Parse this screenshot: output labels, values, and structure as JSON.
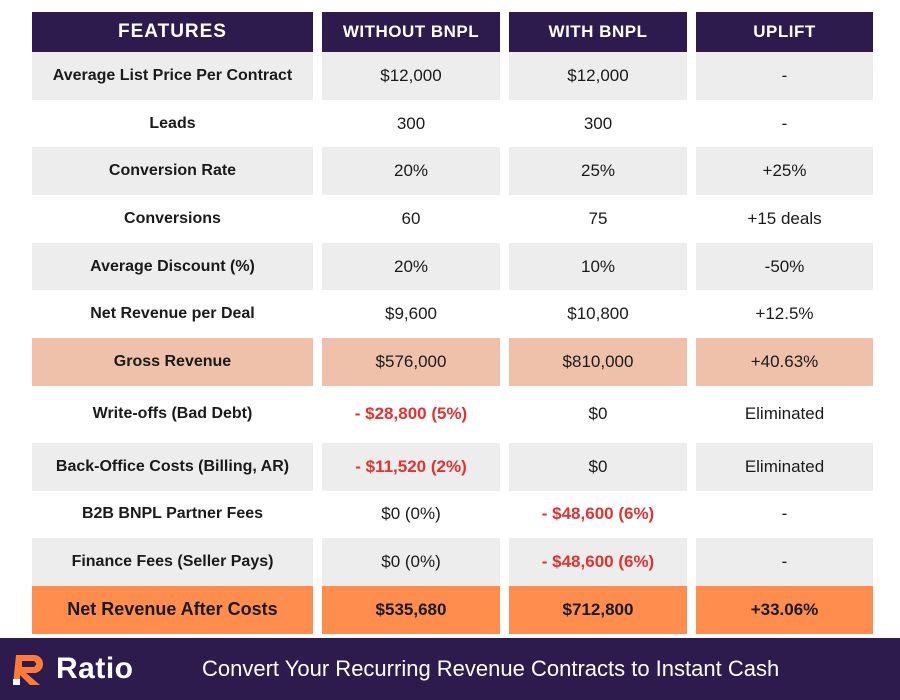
{
  "header": {
    "col0": "FEATURES",
    "col1": "WITHOUT BNPL",
    "col2": "WITH BNPL",
    "col3": "UPLIFT"
  },
  "rows": [
    {
      "feature": "Average List Price Per Contract",
      "without": "$12,000",
      "with": "$12,000",
      "uplift": "-"
    },
    {
      "feature": "Leads",
      "without": "300",
      "with": "300",
      "uplift": "-"
    },
    {
      "feature": "Conversion Rate",
      "without": "20%",
      "with": "25%",
      "uplift": "+25%"
    },
    {
      "feature": "Conversions",
      "without": "60",
      "with": "75",
      "uplift": "+15 deals"
    },
    {
      "feature": "Average Discount (%)",
      "without": "20%",
      "with": "10%",
      "uplift": "-50%"
    },
    {
      "feature": "Net Revenue per Deal",
      "without": "$9,600",
      "with": "$10,800",
      "uplift": "+12.5%"
    },
    {
      "feature": "Gross Revenue",
      "without": "$576,000",
      "with": "$810,000",
      "uplift": "+40.63%"
    },
    {
      "feature": "Write-offs (Bad Debt)",
      "without": "- $28,800 (5%)",
      "with": "$0",
      "uplift": "Eliminated"
    },
    {
      "feature": "Back-Office Costs (Billing, AR)",
      "without": "- $11,520 (2%)",
      "with": "$0",
      "uplift": "Eliminated"
    },
    {
      "feature": "B2B BNPL Partner Fees",
      "without": "$0 (0%)",
      "with": "- $48,600 (6%)",
      "uplift": "-"
    },
    {
      "feature": "Finance Fees (Seller Pays)",
      "without": "$0 (0%)",
      "with": "- $48,600 (6%)",
      "uplift": "-"
    },
    {
      "feature": "Net Revenue After Costs",
      "without": "$535,680",
      "with": "$712,800",
      "uplift": "+33.06%"
    }
  ],
  "footer": {
    "logo_text": "Ratio",
    "tagline": "Convert Your Recurring Revenue Contracts to Instant Cash"
  },
  "colors": {
    "header_bg": "#2d1b4e",
    "shade_row": "#ededed",
    "gross_row": "#efc0aa",
    "net_row": "#fe8d4e",
    "negative_text": "#e23232",
    "logo_accent": "#fe7b3a"
  }
}
